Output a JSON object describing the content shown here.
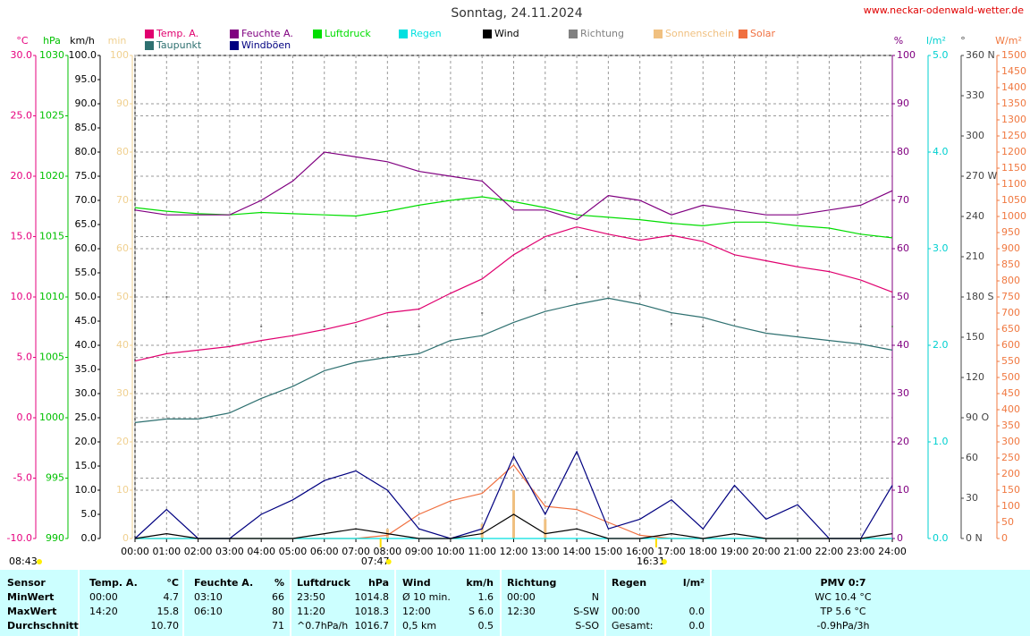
{
  "chart_data": {
    "type": "line",
    "title": "Sonntag, 24.11.2024",
    "source": "www.neckar-odenwald-wetter.de",
    "xlim": [
      0,
      24
    ],
    "xticks": [
      {
        "value": 0,
        "label": "00:00"
      },
      {
        "value": 1,
        "label": "01:00"
      },
      {
        "value": 2,
        "label": "02:00"
      },
      {
        "value": 3,
        "label": "03:00"
      },
      {
        "value": 4,
        "label": "04:00"
      },
      {
        "value": 5,
        "label": "05:00"
      },
      {
        "value": 6,
        "label": "06:00"
      },
      {
        "value": 7,
        "label": "07:00"
      },
      {
        "value": 8,
        "label": "08:00"
      },
      {
        "value": 9,
        "label": "09:00"
      },
      {
        "value": 10,
        "label": "10:00"
      },
      {
        "value": 11,
        "label": "11:00"
      },
      {
        "value": 12,
        "label": "12:00"
      },
      {
        "value": 13,
        "label": "13:00"
      },
      {
        "value": 14,
        "label": "14:00"
      },
      {
        "value": 15,
        "label": "15:00"
      },
      {
        "value": 16,
        "label": "16:00"
      },
      {
        "value": 17,
        "label": "17:00"
      },
      {
        "value": 18,
        "label": "18:00"
      },
      {
        "value": 19,
        "label": "19:00"
      },
      {
        "value": 20,
        "label": "20:00"
      },
      {
        "value": 21,
        "label": "21:00"
      },
      {
        "value": 22,
        "label": "22:00"
      },
      {
        "value": 23,
        "label": "23:00"
      },
      {
        "value": 24,
        "label": "24:00"
      }
    ],
    "grid": true,
    "axes": {
      "y": {
        "label": "°C",
        "color": "#e6007e",
        "ylim": [
          -10,
          30
        ],
        "yticks": [
          {
            "value": -10,
            "label": "-10.0"
          },
          {
            "value": -5,
            "label": "-5.0"
          },
          {
            "value": 0,
            "label": "0.0"
          },
          {
            "value": 5,
            "label": "5.0"
          },
          {
            "value": 10,
            "label": "10.0"
          },
          {
            "value": 15,
            "label": "15.0"
          },
          {
            "value": 20,
            "label": "20.0"
          },
          {
            "value": 25,
            "label": "25.0"
          },
          {
            "value": 30,
            "label": "30.0"
          }
        ]
      },
      "y2": {
        "label": "hPa",
        "color": "#00c000",
        "ylim": [
          990,
          1030
        ],
        "yticks": [
          990,
          995,
          1000,
          1005,
          1010,
          1015,
          1020,
          1025,
          1030
        ]
      },
      "y3": {
        "label": "km/h",
        "color": "#000000",
        "ylim": [
          0,
          100
        ],
        "yticks": [
          {
            "value": 0,
            "label": "0.0"
          },
          {
            "value": 5,
            "label": "5.0"
          },
          {
            "value": 10,
            "label": "10.0"
          },
          {
            "value": 15,
            "label": "15.0"
          },
          {
            "value": 20,
            "label": "20.0"
          },
          {
            "value": 25,
            "label": "25.0"
          },
          {
            "value": 30,
            "label": "30.0"
          },
          {
            "value": 35,
            "label": "35.0"
          },
          {
            "value": 40,
            "label": "40.0"
          },
          {
            "value": 45,
            "label": "45.0"
          },
          {
            "value": 50,
            "label": "50.0"
          },
          {
            "value": 55,
            "label": "55.0"
          },
          {
            "value": 60,
            "label": "60.0"
          },
          {
            "value": 65,
            "label": "65.0"
          },
          {
            "value": 70,
            "label": "70.0"
          },
          {
            "value": 75,
            "label": "75.0"
          },
          {
            "value": 80,
            "label": "80.0"
          },
          {
            "value": 85,
            "label": "85.0"
          },
          {
            "value": 90,
            "label": "90.0"
          },
          {
            "value": 95,
            "label": "95.0"
          },
          {
            "value": 100,
            "label": "100.0"
          }
        ]
      },
      "y4": {
        "label": "min",
        "color": "#f0d090",
        "ylim": [
          0,
          100
        ],
        "yticks": [
          0,
          10,
          20,
          30,
          40,
          50,
          60,
          70,
          80,
          90,
          100
        ]
      },
      "y5": {
        "label": "%",
        "color": "#800080",
        "ylim": [
          0,
          100
        ],
        "yticks": [
          0,
          10,
          20,
          30,
          40,
          50,
          60,
          70,
          80,
          90,
          100
        ]
      },
      "y6": {
        "label": "l/m²",
        "color": "#00d0d0",
        "ylim": [
          0,
          5
        ],
        "yticks": [
          {
            "value": 0,
            "label": "0.0"
          },
          {
            "value": 1,
            "label": "1.0"
          },
          {
            "value": 2,
            "label": "2.0"
          },
          {
            "value": 3,
            "label": "3.0"
          },
          {
            "value": 4,
            "label": "4.0"
          },
          {
            "value": 5,
            "label": "5.0"
          }
        ]
      },
      "y7": {
        "label": "°",
        "color": "#444444",
        "ylim": [
          0,
          360
        ],
        "yticks": [
          {
            "value": 0,
            "label": "0 N"
          },
          30,
          60,
          {
            "value": 90,
            "label": "90 O"
          },
          120,
          150,
          {
            "value": 180,
            "label": "180 S"
          },
          210,
          240,
          {
            "value": 270,
            "label": "270 W"
          },
          300,
          330,
          {
            "value": 360,
            "label": "360 N"
          }
        ]
      },
      "y8": {
        "label": "W/m²",
        "color": "#f07840",
        "ylim": [
          0,
          1500
        ],
        "yticks": [
          0,
          50,
          100,
          150,
          200,
          250,
          300,
          350,
          400,
          450,
          500,
          550,
          600,
          650,
          700,
          750,
          800,
          850,
          900,
          950,
          1000,
          1050,
          1100,
          1150,
          1200,
          1250,
          1300,
          1350,
          1400,
          1450,
          1500
        ]
      }
    },
    "x": [
      0,
      1,
      2,
      3,
      4,
      5,
      6,
      7,
      8,
      9,
      10,
      11,
      12,
      13,
      14,
      15,
      16,
      17,
      18,
      19,
      20,
      21,
      22,
      23,
      24
    ],
    "series": [
      {
        "name": "Temp. A.",
        "color": "#e0006f",
        "axis": "y",
        "style": "line",
        "values": [
          4.7,
          5.3,
          5.6,
          5.9,
          6.4,
          6.8,
          7.3,
          7.9,
          8.7,
          9.0,
          10.3,
          11.5,
          13.5,
          15.0,
          15.8,
          15.2,
          14.7,
          15.1,
          14.6,
          13.5,
          13.0,
          12.5,
          12.1,
          11.4,
          10.4
        ]
      },
      {
        "name": "Taupunkt",
        "color": "#2e7070",
        "axis": "y",
        "style": "line",
        "values": [
          -0.4,
          -0.1,
          -0.1,
          0.4,
          1.6,
          2.6,
          3.9,
          4.6,
          5.0,
          5.3,
          6.4,
          6.8,
          7.9,
          8.8,
          9.4,
          9.9,
          9.4,
          8.7,
          8.3,
          7.6,
          7.0,
          6.7,
          6.4,
          6.1,
          5.6
        ]
      },
      {
        "name": "Feuchte A.",
        "color": "#800080",
        "axis": "y5",
        "style": "line",
        "values": [
          68,
          67,
          67,
          67,
          70,
          74,
          80,
          79,
          78,
          76,
          75,
          74,
          68,
          68,
          66,
          71,
          70,
          67,
          69,
          68,
          67,
          67,
          68,
          69,
          72
        ]
      },
      {
        "name": "Windböen",
        "color": "#000080",
        "axis": "y3",
        "style": "line",
        "values": [
          0,
          6,
          0,
          0,
          5,
          8,
          12,
          14,
          10,
          2,
          0,
          2,
          17,
          5,
          18,
          2,
          4,
          8,
          2,
          11,
          4,
          7,
          0,
          0,
          11
        ]
      },
      {
        "name": "Luftdruck",
        "color": "#00dd00",
        "axis": "y2",
        "style": "line",
        "values": [
          1017.4,
          1017.1,
          1016.9,
          1016.8,
          1017.0,
          1016.9,
          1016.8,
          1016.7,
          1017.1,
          1017.6,
          1018.0,
          1018.3,
          1017.9,
          1017.4,
          1016.8,
          1016.6,
          1016.4,
          1016.1,
          1015.9,
          1016.2,
          1016.2,
          1015.9,
          1015.7,
          1015.2,
          1014.9
        ]
      },
      {
        "name": "Regen",
        "color": "#00e0e0",
        "axis": "y6",
        "style": "line",
        "values": [
          0,
          0,
          0,
          0,
          0,
          0,
          0,
          0,
          0,
          0,
          0,
          0,
          0,
          0,
          0,
          0,
          0,
          0,
          0,
          0,
          0,
          0,
          0,
          0,
          0
        ]
      },
      {
        "name": "Wind",
        "color": "#000000",
        "axis": "y3",
        "style": "line",
        "values": [
          0,
          1,
          0,
          0,
          0,
          0,
          1,
          2,
          1,
          0,
          0,
          1,
          5,
          1,
          2,
          0,
          0,
          1,
          0,
          1,
          0,
          0,
          0,
          0,
          1
        ]
      },
      {
        "name": "Richtung",
        "color": "#808080",
        "axis": "y7",
        "style": "dots",
        "values": [
          180,
          180,
          null,
          null,
          158,
          null,
          158,
          158,
          158,
          158,
          null,
          168,
          185,
          185,
          195,
          187,
          181,
          160,
          158,
          163,
          156,
          155,
          null,
          158,
          158
        ]
      },
      {
        "name": "Sonnenschein",
        "color": "#f0c080",
        "axis": "y4",
        "style": "bars",
        "values": [
          0,
          0,
          0,
          0,
          0,
          0,
          0,
          0,
          2,
          0,
          0,
          3,
          10,
          4,
          0,
          0,
          0,
          0,
          0,
          0,
          0,
          0,
          0,
          0,
          0
        ]
      },
      {
        "name": "Solar",
        "color": "#f07040",
        "axis": "y8",
        "style": "line",
        "values": [
          0,
          0,
          0,
          0,
          0,
          0,
          0,
          0,
          10,
          75,
          117,
          140,
          228,
          100,
          90,
          50,
          10,
          0,
          0,
          0,
          0,
          0,
          0,
          0,
          0
        ]
      }
    ],
    "annotations": [
      {
        "label": "07:47",
        "x": 7.7833
      },
      {
        "label": "16:31",
        "x": 16.5167
      }
    ],
    "day_length": "08:43"
  },
  "table": {
    "header": [
      "Sensor",
      "Temp. A.",
      "°C",
      "Feuchte A.",
      "%",
      "Luftdruck",
      "hPa",
      "Wind",
      "km/h",
      "Richtung",
      null,
      "Regen",
      "l/m²",
      "PMV 0:7"
    ],
    "rows": [
      [
        "MinWert",
        "00:00",
        "4.7",
        "03:10",
        "66",
        "23:50",
        "1014.8",
        "Ø 10 min.",
        "1.6",
        "00:00",
        "N",
        null,
        null,
        "WC 10.4 °C"
      ],
      [
        "MaxWert",
        "14:20",
        "15.8",
        "06:10",
        "80",
        "11:20",
        "1018.3",
        "12:00",
        "S 6.0",
        "12:30",
        "S-SW",
        "00:00",
        "0.0",
        "TP 5.6 °C"
      ],
      [
        "Durchschnitt",
        null,
        "10.70",
        null,
        "71",
        "^0.7hPa/h",
        "1016.7",
        "0,5 km",
        "0.5",
        null,
        "S-SO",
        "Gesamt:",
        "0.0",
        "-0.9hPa/3h"
      ]
    ]
  }
}
